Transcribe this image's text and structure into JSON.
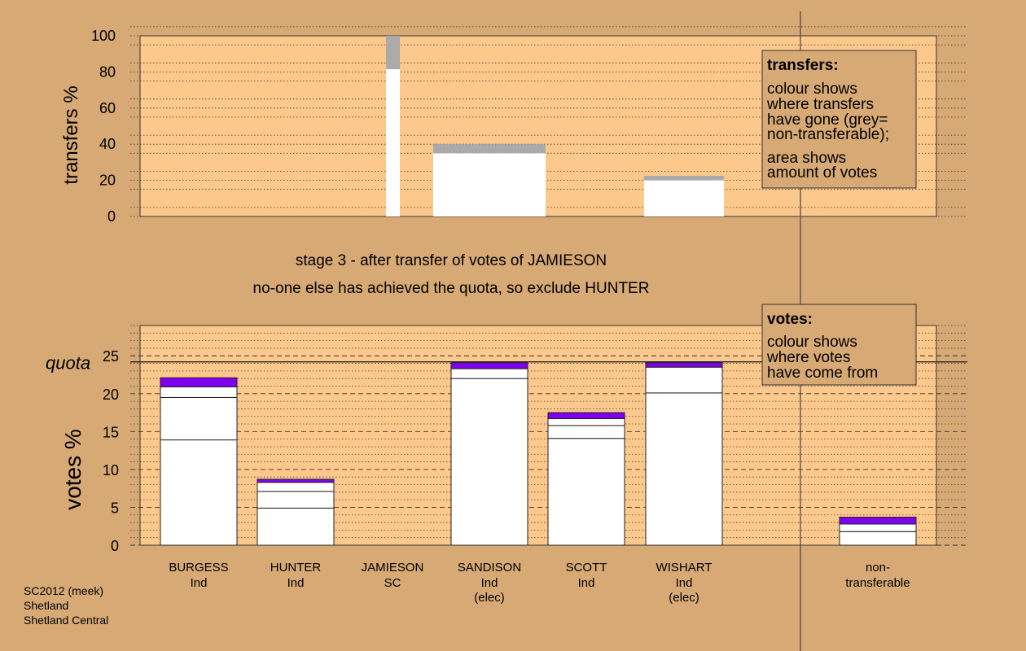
{
  "colors": {
    "background": "#d7a975",
    "plot_background": "#fdc88b",
    "bar_fill": "#ffffff",
    "non_transferable_grey": "#aaaaaa",
    "accent_purple": "#8000f0"
  },
  "chart_data": [
    {
      "type": "bar",
      "name": "transfers",
      "ylabel": "transfers %",
      "ylim": [
        0,
        100
      ],
      "yticks": [
        0,
        20,
        40,
        60,
        80,
        100
      ],
      "grid": "dotted",
      "bars": [
        {
          "label": "JAMIESON",
          "width_share": 0.03,
          "segments": [
            {
              "color": "#ffffff",
              "value": 81.5
            },
            {
              "color": "#aaaaaa",
              "value": 18.5
            }
          ]
        },
        {
          "label": "SANDISON",
          "width_share": 0.25,
          "segments": [
            {
              "color": "#ffffff",
              "value": 35
            },
            {
              "color": "#aaaaaa",
              "value": 5
            }
          ]
        },
        {
          "label": "WISHART",
          "width_share": 0.18,
          "segments": [
            {
              "color": "#ffffff",
              "value": 20
            },
            {
              "color": "#aaaaaa",
              "value": 2.5
            }
          ]
        }
      ],
      "legend": {
        "title": "transfers:",
        "lines": [
          "colour shows",
          "where transfers",
          "have gone (grey=",
          "non-transferable);",
          "area shows",
          "amount of votes"
        ],
        "placement": "top-right"
      }
    },
    {
      "type": "bar",
      "name": "votes",
      "ylabel": "votes %",
      "ylim": [
        0,
        29
      ],
      "yticks": [
        0,
        5,
        10,
        15,
        20,
        25
      ],
      "grid": "dashed",
      "quota": {
        "label": "quota",
        "value": 24.2
      },
      "categories": [
        {
          "name": "BURGESS",
          "party": "Ind",
          "status": ""
        },
        {
          "name": "HUNTER",
          "party": "Ind",
          "status": ""
        },
        {
          "name": "JAMIESON",
          "party": "SC",
          "status": ""
        },
        {
          "name": "SANDISON",
          "party": "Ind",
          "status": "(elec)"
        },
        {
          "name": "SCOTT",
          "party": "Ind",
          "status": ""
        },
        {
          "name": "WISHART",
          "party": "Ind",
          "status": "(elec)"
        },
        {
          "name": "non-",
          "party": "transferable",
          "status": ""
        }
      ],
      "stacks": [
        [
          {
            "color": "#ffffff",
            "value": 13.9
          },
          {
            "color": "#ffffff",
            "value": 5.6
          },
          {
            "color": "#ffffff",
            "value": 1.4
          },
          {
            "color": "#8000f0",
            "value": 1.2
          }
        ],
        [
          {
            "color": "#ffffff",
            "value": 4.9
          },
          {
            "color": "#ffffff",
            "value": 2.2
          },
          {
            "color": "#ffffff",
            "value": 1.2
          },
          {
            "color": "#8000f0",
            "value": 0.4
          }
        ],
        [],
        [
          {
            "color": "#ffffff",
            "value": 22.0
          },
          {
            "color": "#ffffff",
            "value": 1.3
          },
          {
            "color": "#8000f0",
            "value": 0.8
          }
        ],
        [
          {
            "color": "#ffffff",
            "value": 14.1
          },
          {
            "color": "#ffffff",
            "value": 1.7
          },
          {
            "color": "#ffffff",
            "value": 0.9
          },
          {
            "color": "#8000f0",
            "value": 0.8
          }
        ],
        [
          {
            "color": "#ffffff",
            "value": 20.1
          },
          {
            "color": "#ffffff",
            "value": 3.4
          },
          {
            "color": "#8000f0",
            "value": 0.6
          }
        ],
        [
          {
            "color": "#ffffff",
            "value": 1.8
          },
          {
            "color": "#ffffff",
            "value": 1.0
          },
          {
            "color": "#8000f0",
            "value": 0.9
          }
        ]
      ],
      "legend": {
        "title": "votes:",
        "lines": [
          "colour shows",
          "where votes",
          "have come from"
        ],
        "placement": "top-right"
      }
    }
  ],
  "notes": {
    "stage": "stage 3 - after transfer of votes of JAMIESON",
    "action": "no-one else has achieved the quota, so exclude HUNTER"
  },
  "footer": [
    "SC2012 (meek)",
    "Shetland",
    "Shetland Central"
  ]
}
